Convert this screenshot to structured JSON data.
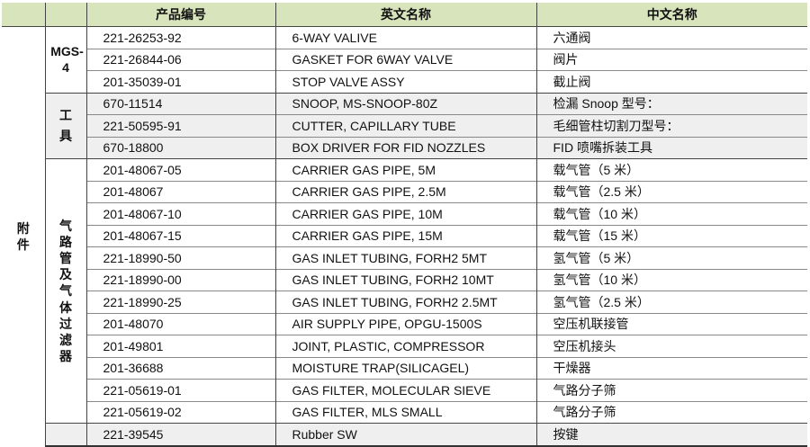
{
  "headers": [
    "",
    "",
    "产品编号",
    "英文名称",
    "中文名称"
  ],
  "category": "附件",
  "colors": {
    "header_bg": "#d8e4bc",
    "gray_row": "#efefef"
  },
  "groups": [
    {
      "label": "MGS-4",
      "shaded": false,
      "rows": [
        [
          "221-26253-92",
          "6-WAY VALIVE",
          "六通阀"
        ],
        [
          "221-26844-06",
          "GASKET FOR 6WAY VALVE",
          "阀片"
        ],
        [
          "201-35039-01",
          "STOP VALVE ASSY",
          "截止阀"
        ]
      ]
    },
    {
      "label": "工具",
      "shaded": true,
      "rows": [
        [
          "670-11514",
          "SNOOP, MS-SNOOP-80Z",
          "检漏 Snoop 型号："
        ],
        [
          "221-50595-91",
          "CUTTER, CAPILLARY TUBE",
          "毛细管柱切割刀型号："
        ],
        [
          "670-18800",
          "BOX DRIVER FOR FID NOZZLES",
          "FID 喷嘴拆装工具"
        ]
      ]
    },
    {
      "label": "气路管及气体过滤器",
      "shaded": false,
      "rows": [
        [
          "201-48067-05",
          "CARRIER GAS PIPE, 5M",
          "载气管（5 米）"
        ],
        [
          "201-48067",
          "CARRIER GAS PIPE, 2.5M",
          "载气管（2.5 米）"
        ],
        [
          "201-48067-10",
          "CARRIER GAS PIPE, 10M",
          "载气管（10 米）"
        ],
        [
          "201-48067-15",
          "CARRIER GAS PIPE, 15M",
          "载气管（15 米）"
        ],
        [
          "221-18990-50",
          "GAS INLET TUBING, FORH2 5MT",
          "氢气管（5 米）"
        ],
        [
          "221-18990-00",
          "GAS INLET TUBING, FORH2 10MT",
          "氢气管（10 米）"
        ],
        [
          "221-18990-25",
          "GAS INLET TUBING, FORH2 2.5MT",
          "氢气管（2.5 米）"
        ],
        [
          "201-48070",
          "AIR SUPPLY PIPE, OPGU-1500S",
          "空压机联接管"
        ],
        [
          "201-49801",
          "JOINT, PLASTIC, COMPRESSOR",
          "空压机接头"
        ],
        [
          "201-36688",
          "MOISTURE TRAP(SILICAGEL)",
          "干燥器"
        ],
        [
          "221-05619-01",
          "GAS FILTER, MOLECULAR SIEVE",
          "气路分子筛"
        ],
        [
          "221-05619-02",
          "GAS FILTER, MLS SMALL",
          "气路分子筛"
        ]
      ]
    },
    {
      "label": "",
      "shaded": true,
      "rows": [
        [
          "221-39545",
          "Rubber SW",
          "按键"
        ]
      ]
    }
  ]
}
